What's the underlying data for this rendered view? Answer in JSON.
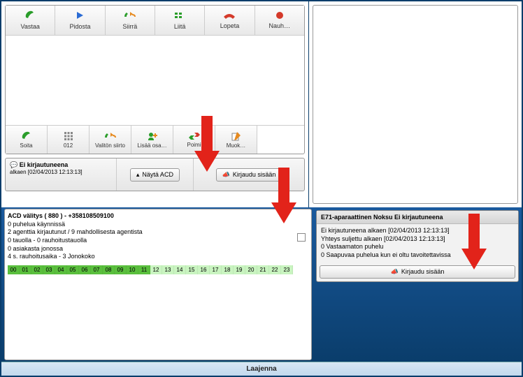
{
  "toolbar1": [
    {
      "label": "Vastaa",
      "iconColor": "#2a9d2a",
      "glyph": "phone"
    },
    {
      "label": "Pidosta",
      "iconColor": "#2a6bd4",
      "glyph": "play"
    },
    {
      "label": "Siirrä",
      "iconColor": "#e68a1f",
      "glyph": "transfer"
    },
    {
      "label": "Liitä",
      "iconColor": "#2a9d2a",
      "glyph": "group"
    },
    {
      "label": "Lopeta",
      "iconColor": "#d43a2a",
      "glyph": "hangup"
    },
    {
      "label": "Nauh…",
      "iconColor": "#d43a2a",
      "glyph": "record"
    }
  ],
  "toolbar2": [
    {
      "label": "Soita",
      "glyph": "phone",
      "color": "#2a9d2a"
    },
    {
      "label": "012",
      "glyph": "keypad",
      "color": "#888"
    },
    {
      "label": "Valitön siirto",
      "glyph": "transfer",
      "color": "#2a9d2a"
    },
    {
      "label": "Lisää osa…",
      "glyph": "add",
      "color": "#e68a1f"
    },
    {
      "label": "Poimi",
      "glyph": "swap",
      "color": "#2a9d2a"
    },
    {
      "label": "Muok…",
      "glyph": "edit",
      "color": "#e68a1f"
    }
  ],
  "status": {
    "title": "Ei kirjautuneena",
    "since": "alkaen [02/04/2013 12:13:13]",
    "showACD": "Näytä ACD",
    "login": "Kirjaudu sisään"
  },
  "acd": {
    "l1": "ACD välitys ( 880 ) - +358108509100",
    "l2": "0 puhelua käynnissä",
    "l3": "2 agenttia kirjautunut / 9 mahdollisesta agentista",
    "l4": "0 tauolla - 0 rauhoitustauolla",
    "l5": "0 asiakasta jonossa",
    "l6": "4 s. rauhoitusaika - 3 Jonokoko",
    "hours": [
      "00",
      "01",
      "02",
      "03",
      "04",
      "05",
      "06",
      "07",
      "08",
      "09",
      "10",
      "11",
      "12",
      "13",
      "14",
      "15",
      "16",
      "17",
      "18",
      "19",
      "20",
      "21",
      "22",
      "23"
    ],
    "splitDark": 12
  },
  "device": {
    "title": "E71-aparaattinen Noksu Ei kirjautuneena",
    "l1": "Ei kirjautuneena alkaen [02/04/2013 12:13:13]",
    "l2": "Yhteys suljettu alkaen [02/04/2013 12:13:13]",
    "l3": "0 Vastaamaton puhelu",
    "l4": "0 Saapuvaa puhelua kun ei oltu tavoitettavissa",
    "login": "Kirjaudu sisään"
  },
  "footer": "Laajenna",
  "arrow_color": "#e2231a"
}
